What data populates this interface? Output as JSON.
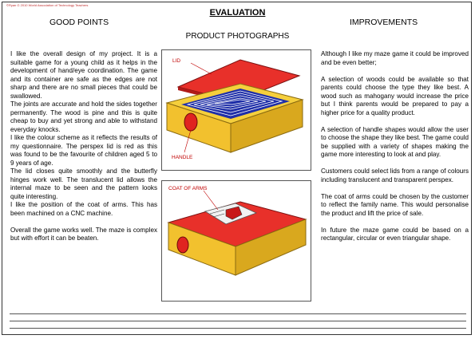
{
  "copyright": "©Ryan G 2010 World Association of Technology Teachers",
  "title": "EVALUATION",
  "left_header": "GOOD POINTS",
  "right_header": "IMPROVEMENTS",
  "photos_header": "PRODUCT PHOTOGRAPHS",
  "good_points": [
    "I like the overall design of my project. It is a suitable game for a young child as it helps in the development of hand/eye coordination. The game and its container are safe as the edges are not sharp and there are no small pieces that could be swallowed.",
    "The joints are accurate and hold the sides together permanently. The wood is pine and this is quite cheap to buy and yet strong and able to withstand everyday knocks.",
    "I like the colour scheme as it reflects the results of my questionnaire. The perspex lid is red as this was found to be the favourite of children aged 5 to 9 years of age.",
    "The lid closes quite smoothly and the butterfly hinges work well. The translucent lid allows the internal maze to be seen and the pattern looks quite interesting.",
    "I like the position of the coat of arms. This has been machined on a CNC machine.",
    "Overall the game works well. The maze is complex but with effort it can be beaten."
  ],
  "improvements": [
    "Although I like my maze game it could be improved and be even better;",
    "A selection of woods could be available so that parents could choose the type they like best. A wood such as mahogany would increase the price but I think parents would be prepared to pay a higher price for a quality product.",
    "A selection of handle shapes would allow the user to choose the shape they like best. The game could be supplied with a variety of shapes making the game more interesting to look at and play.",
    "Customers could select lids from a range of colours including translucent and transparent perspex.",
    "The coat of arms could be chosen by the customer to reflect the family name. This would personalise the product and lift the price of sale.",
    "In future the maze game could be based on a rectangular, circular or even triangular shape."
  ],
  "photo1": {
    "label_lid": "LID",
    "label_handle": "HANDLE"
  },
  "photo2": {
    "label_coat": "COAT OF ARMS"
  },
  "colors": {
    "wood": "#f2c12e",
    "lid": "#e8302a",
    "maze": "#1f2fa8",
    "callout": "#c00000"
  }
}
